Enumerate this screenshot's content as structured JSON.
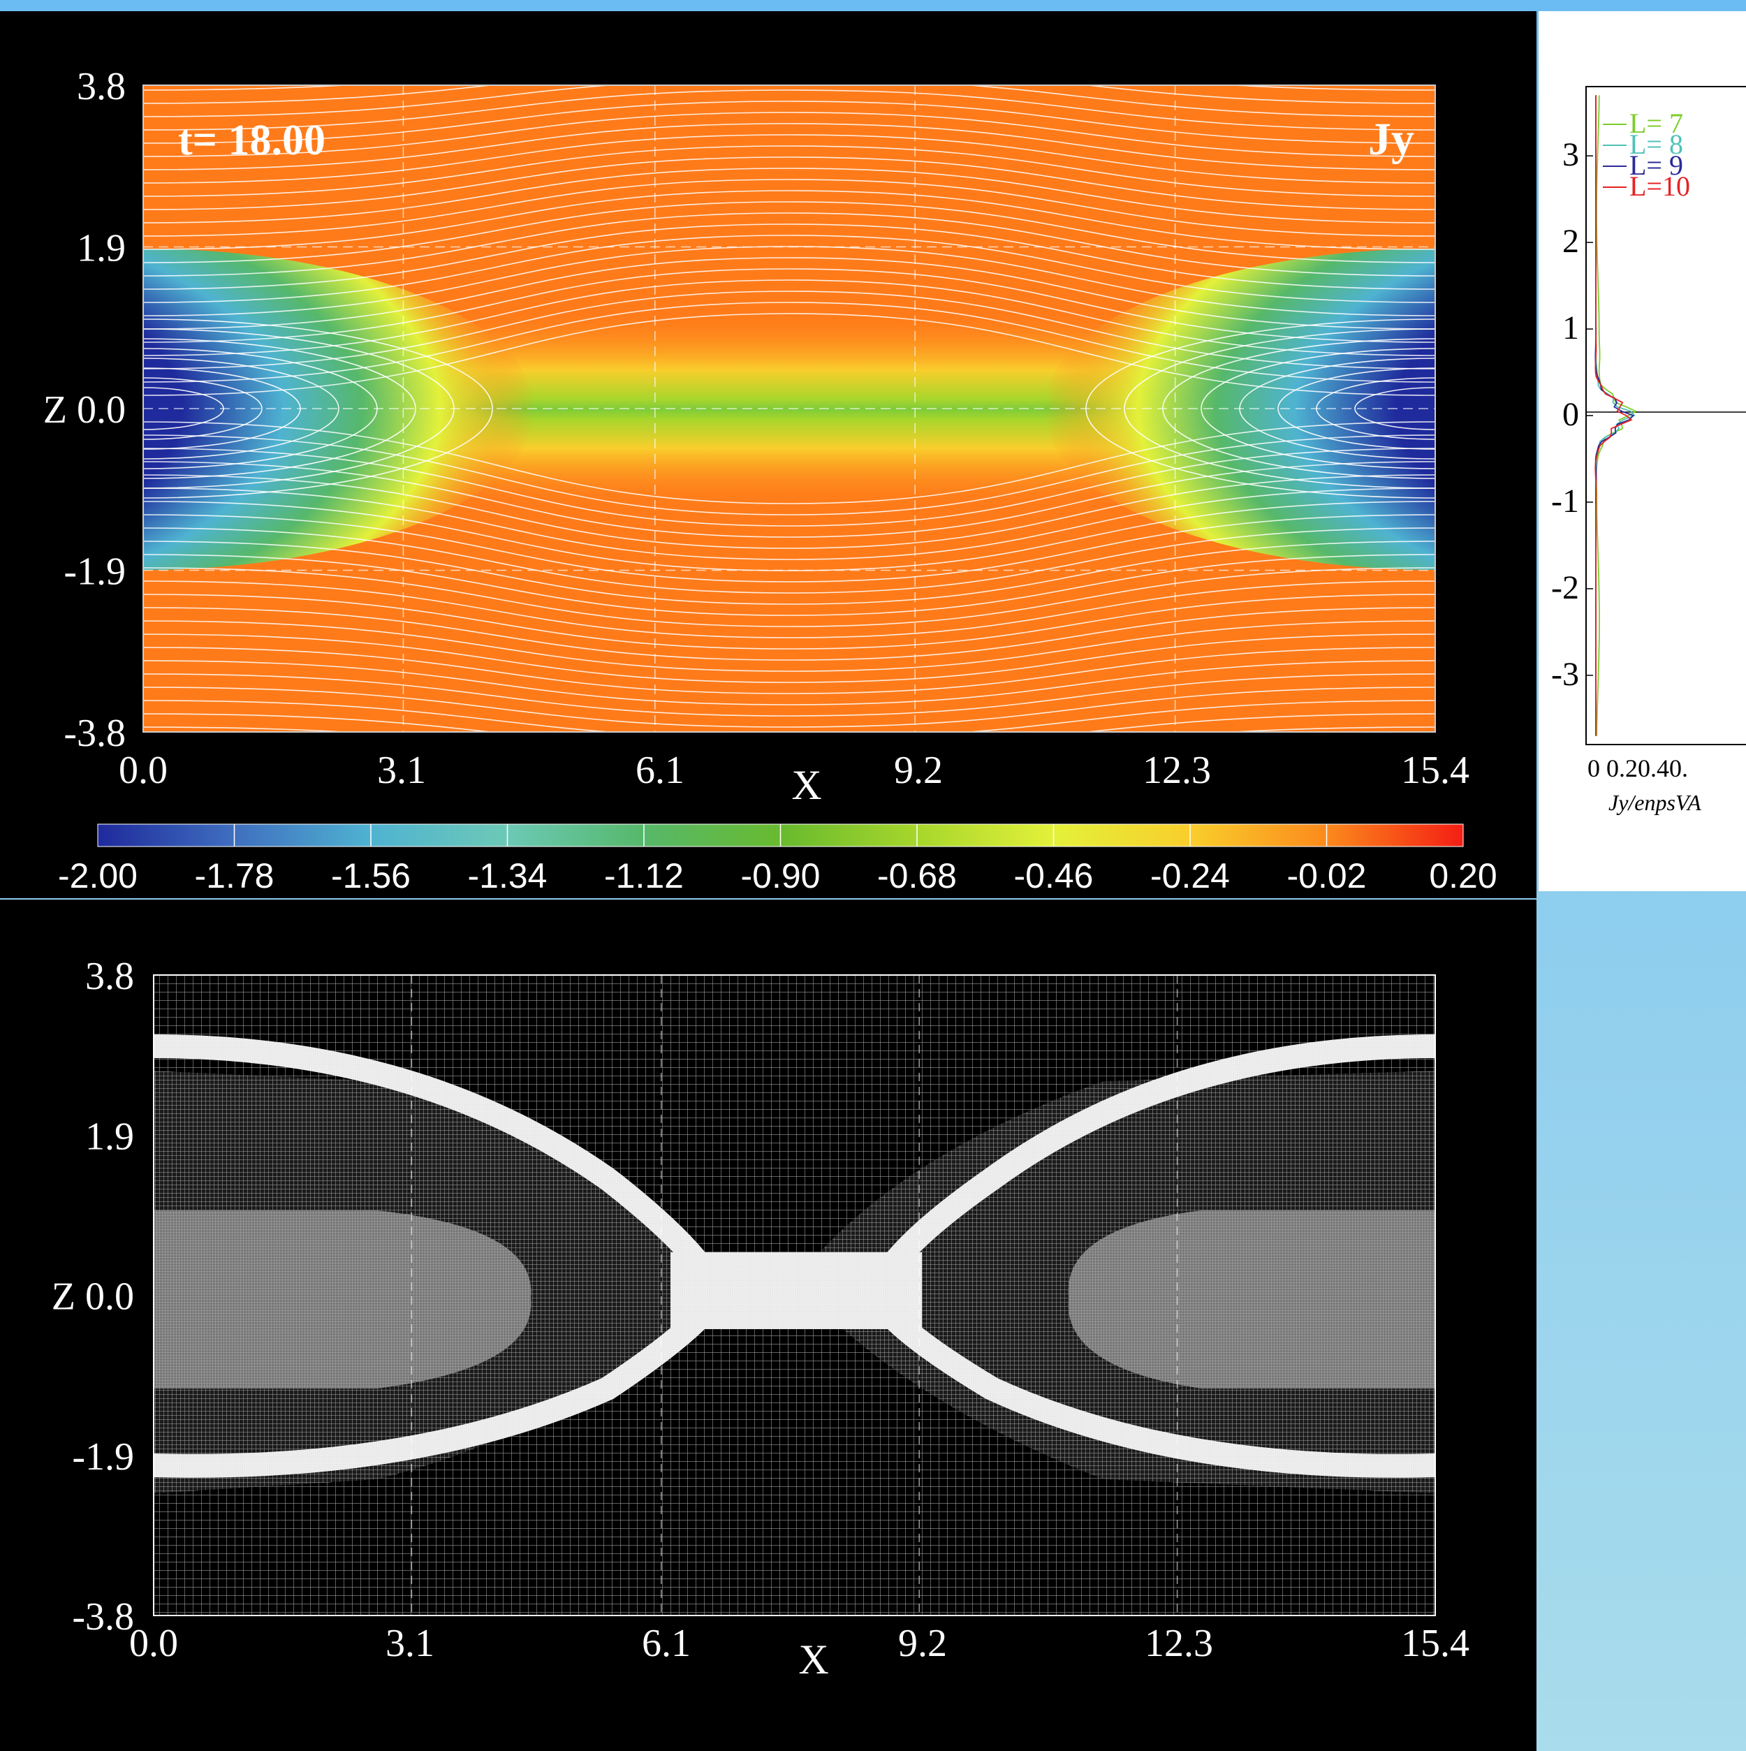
{
  "chart_data": [
    {
      "type": "heatmap",
      "title": "Jy",
      "annotation": "t=  18.00",
      "xlabel": "X",
      "ylabel": "Z",
      "xlim": [
        0.0,
        15.4
      ],
      "ylim": [
        -3.8,
        3.8
      ],
      "xticks": [
        "0.0",
        "3.1",
        "6.1",
        "9.2",
        "12.3",
        "15.4"
      ],
      "yticks": [
        "3.8",
        "1.9",
        "Z 0.0",
        "-1.9",
        "-3.8"
      ],
      "colorbar": {
        "range": [
          -2.0,
          0.2
        ],
        "ticks": [
          "-2.00",
          "-1.78",
          "-1.56",
          "-1.34",
          "-1.12",
          "-0.90",
          "-0.68",
          "-0.46",
          "-0.24",
          "-0.02",
          "0.20"
        ]
      },
      "field_lines": "white magnetic field lines, X-point at x=7.7, z=0.0",
      "grid_dashed_at_x": [
        3.1,
        6.1,
        9.2,
        12.3
      ],
      "grid_dashed_at_z": [
        1.9,
        0.0,
        -1.9
      ],
      "current_sheet_islands": [
        {
          "x_center": 0.0,
          "z_center": 0.0,
          "jy_min": -2.0
        },
        {
          "x_center": 15.4,
          "z_center": 0.0,
          "jy_min": -2.0
        }
      ]
    },
    {
      "type": "heatmap",
      "title": "",
      "xlabel": "X",
      "ylabel": "Z",
      "xlim": [
        0.0,
        15.4
      ],
      "ylim": [
        -3.8,
        3.8
      ],
      "xticks": [
        "0.0",
        "3.1",
        "6.1",
        "9.2",
        "12.3",
        "15.4"
      ],
      "yticks": [
        "3.8",
        "1.9",
        "Z 0.0",
        "-1.9",
        "-3.8"
      ],
      "description_levels": "AMR grid refinement levels (coarse to finest)",
      "levels": [
        7,
        8,
        9,
        10
      ]
    },
    {
      "type": "line",
      "xlabel": "Jy/enpsVA",
      "ylabel": "",
      "ylim": [
        -3.8,
        3.8
      ],
      "yticks": [
        "3",
        "2",
        "1",
        "0",
        "-1",
        "-2",
        "-3"
      ],
      "xticks": [
        "0 0.20.40."
      ],
      "series": [
        {
          "name": "L= 7",
          "color": "#7ccd2c"
        },
        {
          "name": "L= 8",
          "color": "#4fc2b8"
        },
        {
          "name": "L= 9",
          "color": "#2a2a9a"
        },
        {
          "name": "L=10",
          "color": "#e52222"
        }
      ]
    }
  ],
  "labels": {
    "time": "t=  18.00",
    "field": "Jy",
    "xaxis": "X",
    "zaxis": "Z",
    "legend_visible": [
      "L= 7",
      "L= 8",
      "L= 9",
      "L=10"
    ]
  },
  "colors": {
    "background": "#000000",
    "page_bg": "#7cc6ef",
    "orange": "#ff7b1a",
    "blue": "#1a2a9e"
  }
}
